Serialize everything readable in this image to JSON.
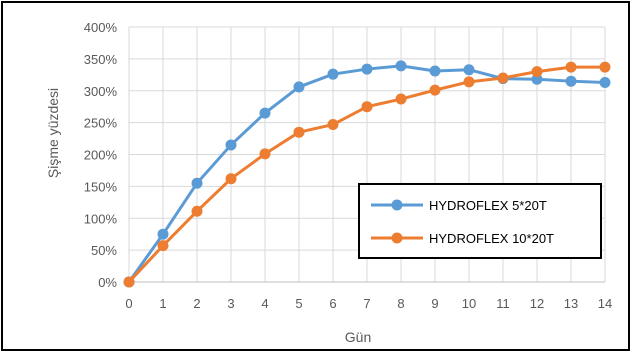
{
  "chart_data": {
    "type": "line",
    "xlabel": "Gün",
    "ylabel": "Şişme yüzdesi",
    "x": [
      0,
      1,
      2,
      3,
      4,
      5,
      6,
      7,
      8,
      9,
      10,
      11,
      12,
      13,
      14
    ],
    "x_tick_labels": [
      "0",
      "1",
      "2",
      "3",
      "4",
      "5",
      "6",
      "7",
      "8",
      "9",
      "10",
      "11",
      "12",
      "13",
      "14"
    ],
    "ylim": [
      0,
      400
    ],
    "y_ticks": [
      0,
      50,
      100,
      150,
      200,
      250,
      300,
      350,
      400
    ],
    "y_tick_labels": [
      "0%",
      "50%",
      "100%",
      "150%",
      "200%",
      "250%",
      "300%",
      "350%",
      "400%"
    ],
    "grid": true,
    "legend_position": "bottom-right",
    "series": [
      {
        "name": "HYDROFLEX 5*20T",
        "color": "#5B9BD5",
        "values": [
          0,
          75,
          155,
          215,
          265,
          306,
          326,
          334,
          339,
          331,
          333,
          319,
          318,
          315,
          313
        ]
      },
      {
        "name": "HYDROFLEX 10*20T",
        "color": "#ED7D31",
        "values": [
          0,
          57,
          111,
          162,
          201,
          235,
          247,
          275,
          287,
          301,
          314,
          320,
          330,
          337,
          337
        ]
      }
    ]
  }
}
